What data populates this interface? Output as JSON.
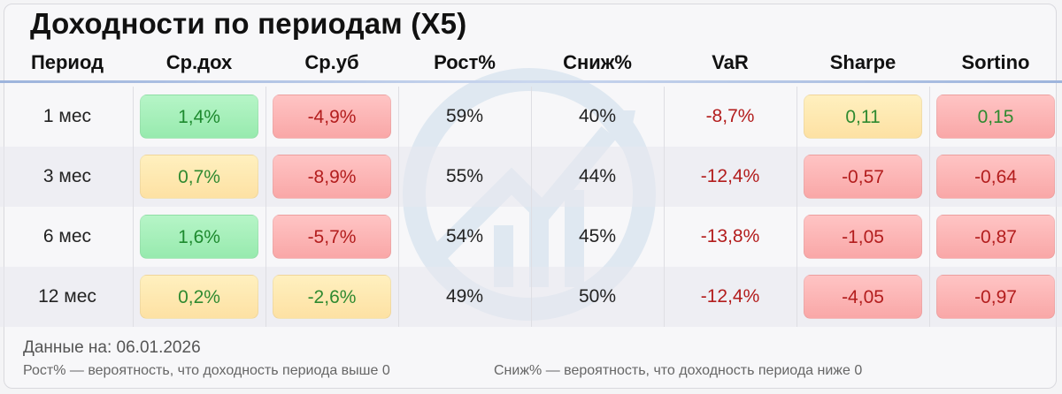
{
  "title": "Доходности по периодам (X5)",
  "chart_data": {
    "type": "table",
    "columns": [
      "Период",
      "Ср.дох",
      "Ср.уб",
      "Рост%",
      "Сниж%",
      "VaR",
      "Sharpe",
      "Sortino"
    ],
    "rows": [
      {
        "period": "1 мес",
        "avg_gain": "1,4%",
        "avg_loss": "-4,9%",
        "growth": "59%",
        "decline": "40%",
        "var": "-8,7%",
        "sharpe": "0,11",
        "sortino": "0,15"
      },
      {
        "period": "3 мес",
        "avg_gain": "0,7%",
        "avg_loss": "-8,9%",
        "growth": "55%",
        "decline": "44%",
        "var": "-12,4%",
        "sharpe": "-0,57",
        "sortino": "-0,64"
      },
      {
        "period": "6 мес",
        "avg_gain": "1,6%",
        "avg_loss": "-5,7%",
        "growth": "54%",
        "decline": "45%",
        "var": "-13,8%",
        "sharpe": "-1,05",
        "sortino": "-0,87"
      },
      {
        "period": "12 мес",
        "avg_gain": "0,2%",
        "avg_loss": "-2,6%",
        "growth": "49%",
        "decline": "50%",
        "var": "-12,4%",
        "sharpe": "-4,05",
        "sortino": "-0,97"
      }
    ],
    "cell_colors": [
      {
        "avg_gain": "green",
        "avg_loss": "red",
        "sharpe": "yellow",
        "sortino": "red"
      },
      {
        "avg_gain": "yellow",
        "avg_loss": "red",
        "sharpe": "red",
        "sortino": "red"
      },
      {
        "avg_gain": "green",
        "avg_loss": "red",
        "sharpe": "red",
        "sortino": "red"
      },
      {
        "avg_gain": "yellow",
        "avg_loss": "yellow",
        "sharpe": "red",
        "sortino": "red"
      }
    ]
  },
  "colors": {
    "green": "#a6efba",
    "yellow": "#fee8b0",
    "red": "#fbb5b5",
    "header_line": "#9db4dc"
  },
  "footer": {
    "date_line": "Данные на: 06.01.2026",
    "note_growth": "Рост% — вероятность, что доходность периода выше 0",
    "note_decline": "Сниж% — вероятность, что доходность периода ниже 0"
  }
}
